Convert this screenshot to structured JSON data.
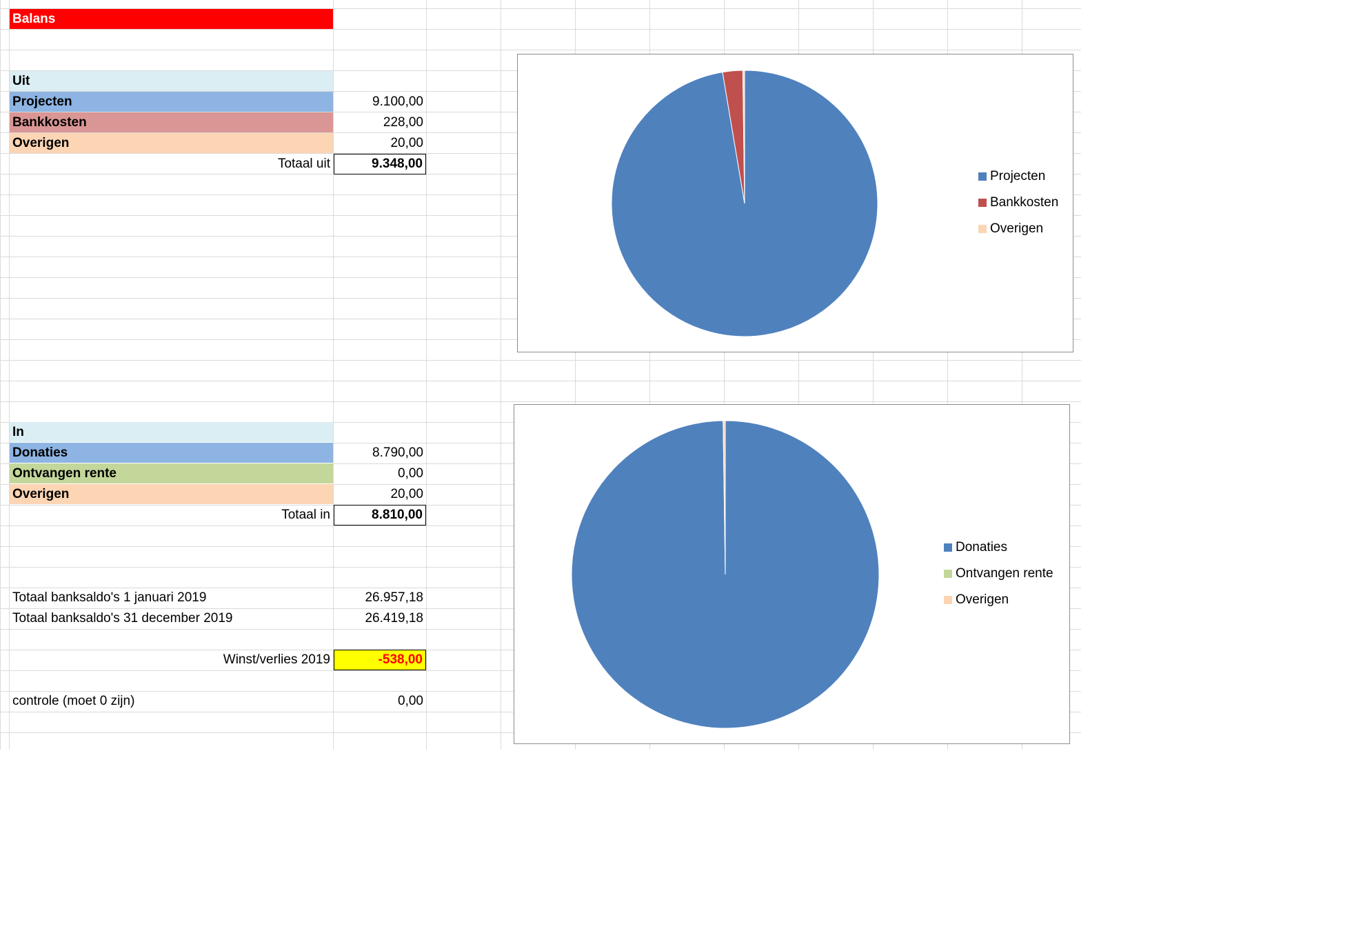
{
  "title": "Balans",
  "uit": {
    "header": "Uit",
    "rows": [
      {
        "label": "Projecten",
        "value": "9.100,00"
      },
      {
        "label": "Bankkosten",
        "value": "228,00"
      },
      {
        "label": "Overigen",
        "value": "20,00"
      }
    ],
    "total_label": "Totaal uit",
    "total_value": "9.348,00"
  },
  "in": {
    "header": "In",
    "rows": [
      {
        "label": "Donaties",
        "value": "8.790,00"
      },
      {
        "label": "Ontvangen rente",
        "value": "0,00"
      },
      {
        "label": "Overigen",
        "value": "20,00"
      }
    ],
    "total_label": "Totaal in",
    "total_value": "8.810,00"
  },
  "summary": {
    "saldo_start_label": "Totaal banksaldo's 1 januari 2019",
    "saldo_start_value": "26.957,18",
    "saldo_end_label": "Totaal banksaldo's 31 december 2019",
    "saldo_end_value": "26.419,18",
    "winst_label": "Winst/verlies 2019",
    "winst_value": "-538,00",
    "controle_label": "controle (moet 0 zijn)",
    "controle_value": "0,00"
  },
  "colors": {
    "title_bg": "#ff0000",
    "header_bg": "#daeef3",
    "row1_bg": "#8db4e2",
    "uit_row2_bg": "#da9694",
    "in_row2_bg": "#c4d79b",
    "row3_bg": "#fcd5b4",
    "highlight_bg": "#ffff00",
    "negative_text": "#ff0000"
  },
  "chart_data": [
    {
      "type": "pie",
      "categories": [
        "Projecten",
        "Bankkosten",
        "Overigen"
      ],
      "values": [
        9100,
        228,
        20
      ],
      "colors": [
        "#4f81bd",
        "#c0504d",
        "#fcd5b4"
      ],
      "legend": "right"
    },
    {
      "type": "pie",
      "categories": [
        "Donaties",
        "Ontvangen rente",
        "Overigen"
      ],
      "values": [
        8790,
        0,
        20
      ],
      "colors": [
        "#4f81bd",
        "#c4d79b",
        "#fcd5b4"
      ],
      "legend": "right"
    }
  ]
}
